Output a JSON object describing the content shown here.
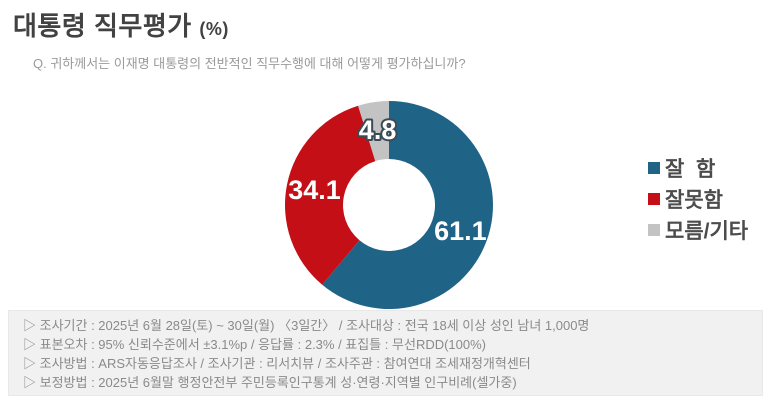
{
  "header": {
    "title": "대통령 직무평가",
    "unit": "(%)",
    "question": "Q. 귀하께서는 이재명 대통령의 전반적인 직무수행에 대해 어떻게 평가하십니까?"
  },
  "chart_data": {
    "type": "pie",
    "donut": true,
    "title": "대통령 직무평가 (%)",
    "start_angle_deg": 0,
    "direction": "clockwise",
    "inner_radius_ratio": 0.44,
    "slices": [
      {
        "label": "잘  함",
        "value": 61.1,
        "color": "#1f6387",
        "label_color": "#ffffff"
      },
      {
        "label": "잘못함",
        "value": 34.1,
        "color": "#c50f16",
        "label_color": "#ffffff"
      },
      {
        "label": "모름/기타",
        "value": 4.8,
        "color": "#c3c3c3",
        "label_color": "#ffffff",
        "label_outline_color": "#3b4a55"
      }
    ],
    "legend_position": "right"
  },
  "footer": {
    "lines": [
      "▷ 조사기간 : 2025년 6월 28일(토) ~ 30일(월) 〈3일간〉 / 조사대상 : 전국 18세 이상 성인 남녀 1,000명",
      "▷ 표본오차 : 95% 신뢰수준에서 ±3.1%p / 응답률 : 2.3% / 표집틀 : 무선RDD(100%)",
      "▷ 조사방법 : ARS자동응답조사 / 조사기관 : 리서치뷰 / 조사주관 : 참여연대 조세재정개혁센터",
      "▷ 보정방법 : 2025년 6월말 행정안전부 주민등록인구통계 성·연령·지역별 인구비례(셀가중)"
    ]
  }
}
